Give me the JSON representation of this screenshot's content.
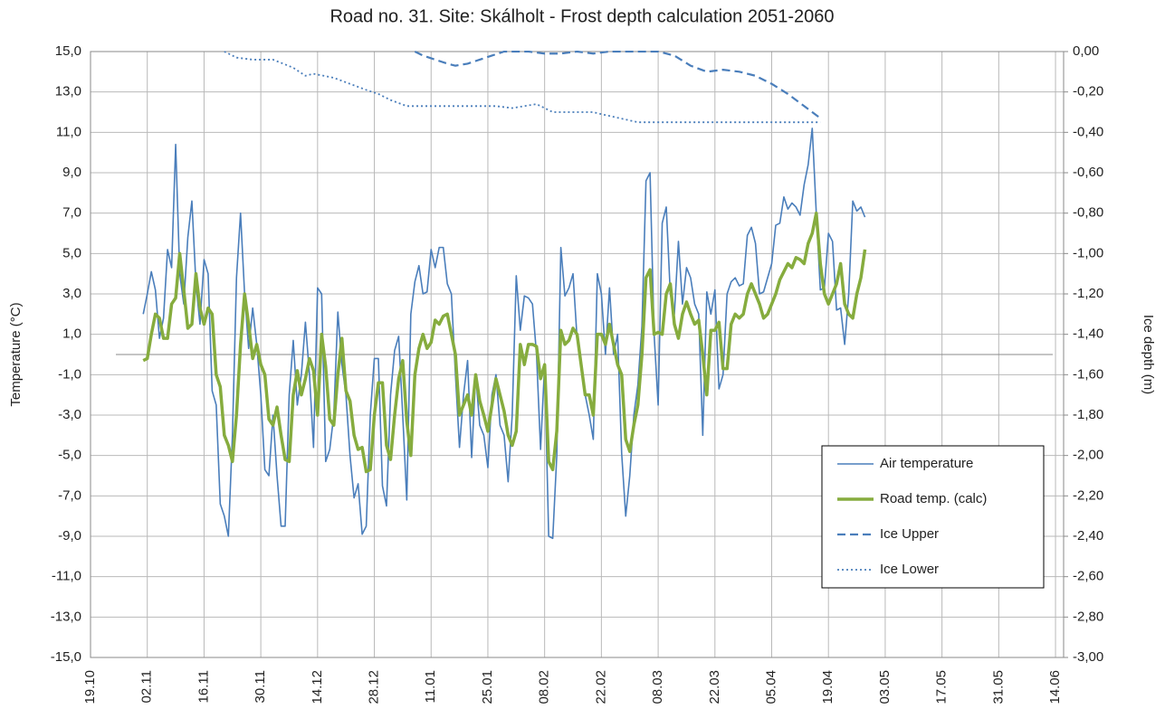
{
  "chart_data": {
    "type": "line",
    "title": "Road no. 31. Site: Skálholt - Frost depth calculation 2051-2060",
    "y_label": "Temperature (°C)",
    "y2_label": "Ice depth (m)",
    "grid": true,
    "legend": "lower right",
    "xlim": [
      0,
      240
    ],
    "xticks": [
      {
        "value": 0,
        "label": "19.10"
      },
      {
        "value": 14,
        "label": "02.11"
      },
      {
        "value": 28,
        "label": "16.11"
      },
      {
        "value": 42,
        "label": "30.11"
      },
      {
        "value": 56,
        "label": "14.12"
      },
      {
        "value": 70,
        "label": "28.12"
      },
      {
        "value": 84,
        "label": "11.01"
      },
      {
        "value": 98,
        "label": "25.01"
      },
      {
        "value": 112,
        "label": "08.02"
      },
      {
        "value": 126,
        "label": "22.02"
      },
      {
        "value": 140,
        "label": "08.03"
      },
      {
        "value": 154,
        "label": "22.03"
      },
      {
        "value": 168,
        "label": "05.04"
      },
      {
        "value": 182,
        "label": "19.04"
      },
      {
        "value": 196,
        "label": "03.05"
      },
      {
        "value": 210,
        "label": "17.05"
      },
      {
        "value": 224,
        "label": "31.05"
      },
      {
        "value": 238,
        "label": "14.06"
      }
    ],
    "ylim": [
      -15,
      15
    ],
    "yticks": [
      {
        "value": 15,
        "label": "15,0"
      },
      {
        "value": 13,
        "label": "13,0"
      },
      {
        "value": 11,
        "label": "11,0"
      },
      {
        "value": 9,
        "label": "9,0"
      },
      {
        "value": 7,
        "label": "7,0"
      },
      {
        "value": 5,
        "label": "5,0"
      },
      {
        "value": 3,
        "label": "3,0"
      },
      {
        "value": 1,
        "label": "1,0"
      },
      {
        "value": -1,
        "label": "-1,0"
      },
      {
        "value": -3,
        "label": "-3,0"
      },
      {
        "value": -5,
        "label": "-5,0"
      },
      {
        "value": -7,
        "label": "-7,0"
      },
      {
        "value": -9,
        "label": "-9,0"
      },
      {
        "value": -11,
        "label": "-11,0"
      },
      {
        "value": -13,
        "label": "-13,0"
      },
      {
        "value": -15,
        "label": "-15,0"
      }
    ],
    "y2lim": [
      -3,
      0
    ],
    "y2ticks": [
      {
        "value": 0,
        "label": "0,00"
      },
      {
        "value": -0.2,
        "label": "-0,20"
      },
      {
        "value": -0.4,
        "label": "-0,40"
      },
      {
        "value": -0.6,
        "label": "-0,60"
      },
      {
        "value": -0.8,
        "label": "-0,80"
      },
      {
        "value": -1,
        "label": "-1,00"
      },
      {
        "value": -1.2,
        "label": "-1,20"
      },
      {
        "value": -1.4,
        "label": "-1,40"
      },
      {
        "value": -1.6,
        "label": "-1,60"
      },
      {
        "value": -1.8,
        "label": "-1,80"
      },
      {
        "value": -2,
        "label": "-2,00"
      },
      {
        "value": -2.2,
        "label": "-2,20"
      },
      {
        "value": -2.4,
        "label": "-2,40"
      },
      {
        "value": -2.6,
        "label": "-2,60"
      },
      {
        "value": -2.8,
        "label": "-2,80"
      },
      {
        "value": -3,
        "label": "-3,00"
      }
    ],
    "x": [
      13,
      14,
      15,
      16,
      17,
      18,
      19,
      20,
      21,
      22,
      23,
      24,
      25,
      26,
      27,
      28,
      29,
      30,
      31,
      32,
      33,
      34,
      35,
      36,
      37,
      38,
      39,
      40,
      41,
      42,
      43,
      44,
      45,
      46,
      47,
      48,
      49,
      50,
      51,
      52,
      53,
      54,
      55,
      56,
      57,
      58,
      59,
      60,
      61,
      62,
      63,
      64,
      65,
      66,
      67,
      68,
      69,
      70,
      71,
      72,
      73,
      74,
      75,
      76,
      77,
      78,
      79,
      80,
      81,
      82,
      83,
      84,
      85,
      86,
      87,
      88,
      89,
      90,
      91,
      92,
      93,
      94,
      95,
      96,
      97,
      98,
      99,
      100,
      101,
      102,
      103,
      104,
      105,
      106,
      107,
      108,
      109,
      110,
      111,
      112,
      113,
      114,
      115,
      116,
      117,
      118,
      119,
      120,
      121,
      122,
      123,
      124,
      125,
      126,
      127,
      128,
      129,
      130,
      131,
      132,
      133,
      134,
      135,
      136,
      137,
      138,
      139,
      140,
      141,
      142,
      143,
      144,
      145,
      146,
      147,
      148,
      149,
      150,
      151,
      152,
      153,
      154,
      155,
      156,
      157,
      158,
      159,
      160,
      161,
      162,
      163,
      164,
      165,
      166,
      167,
      168,
      169,
      170,
      171,
      172,
      173,
      174,
      175,
      176,
      177,
      178,
      179,
      180,
      181,
      182,
      183,
      184,
      185,
      186,
      187,
      188,
      189,
      190,
      191
    ],
    "series": [
      {
        "name": "Air temperature",
        "color": "#4a7ebb",
        "style": "solid",
        "width": 1.6,
        "values": [
          2.0,
          3.0,
          4.1,
          3.2,
          0.8,
          1.8,
          5.2,
          4.3,
          10.4,
          4.0,
          2.5,
          5.8,
          7.6,
          3.5,
          1.5,
          4.7,
          4.0,
          -1.8,
          -2.5,
          -7.4,
          -8.0,
          -9.0,
          -4.0,
          3.8,
          7.0,
          3.0,
          0.3,
          2.3,
          0.5,
          -2.0,
          -5.7,
          -6.0,
          -3.0,
          -6.0,
          -8.5,
          -8.5,
          -2.0,
          0.7,
          -2.5,
          -1.0,
          1.6,
          -1.0,
          -4.6,
          3.3,
          3.0,
          -5.3,
          -4.7,
          -3.0,
          2.1,
          -0.5,
          -2.0,
          -5.0,
          -7.1,
          -6.4,
          -8.9,
          -8.5,
          -3.0,
          -0.2,
          -0.2,
          -6.5,
          -7.5,
          -2.0,
          0.2,
          0.9,
          -3.0,
          -7.2,
          2.0,
          3.6,
          4.4,
          3.0,
          3.1,
          5.2,
          4.3,
          5.3,
          5.3,
          3.5,
          3.0,
          -1.0,
          -4.6,
          -2.0,
          -0.3,
          -5.1,
          -1.0,
          -3.5,
          -4.0,
          -5.6,
          -2.0,
          -1.0,
          -3.5,
          -4.0,
          -6.3,
          -3.0,
          3.9,
          1.2,
          2.9,
          2.8,
          2.5,
          0.0,
          -4.7,
          -0.5,
          -9.0,
          -9.1,
          -5.0,
          5.3,
          2.9,
          3.3,
          4.0,
          0.8,
          -0.5,
          -2.0,
          -3.0,
          -4.2,
          4.0,
          3.0,
          0.0,
          3.3,
          0.0,
          1.0,
          -4.9,
          -8.0,
          -6.0,
          -3.0,
          -1.5,
          1.4,
          8.6,
          9.0,
          1.0,
          -2.5,
          6.5,
          7.3,
          3.0,
          2.0,
          5.6,
          2.5,
          4.3,
          3.8,
          2.5,
          2.0,
          -4.0,
          3.1,
          2.0,
          3.2,
          -1.7,
          -1.0,
          3.0,
          3.6,
          3.8,
          3.4,
          3.5,
          5.9,
          6.3,
          5.5,
          3.0,
          3.1,
          3.8,
          4.5,
          6.4,
          6.5,
          7.8,
          7.2,
          7.5,
          7.3,
          6.9,
          8.4,
          9.4,
          11.2,
          7.0,
          3.2,
          3.3,
          6.0,
          5.6,
          2.2,
          2.3,
          0.5,
          3.0,
          7.6,
          7.1,
          7.3,
          6.8
        ]
      },
      {
        "name": "Road temp. (calc)",
        "color": "#86ac3e",
        "style": "solid",
        "width": 3.5,
        "values": [
          -0.3,
          -0.2,
          1.0,
          2.0,
          1.8,
          0.8,
          0.8,
          2.5,
          2.8,
          5.0,
          3.2,
          1.3,
          1.5,
          4.0,
          2.3,
          1.5,
          2.3,
          2.0,
          -1.0,
          -1.6,
          -4.0,
          -4.5,
          -5.3,
          -3.0,
          0.5,
          3.0,
          1.5,
          -0.2,
          0.5,
          -0.5,
          -1.0,
          -3.2,
          -3.5,
          -2.6,
          -4.0,
          -5.2,
          -5.3,
          -2.0,
          -0.8,
          -2.0,
          -1.2,
          -0.2,
          -0.8,
          -3.0,
          1.0,
          -0.6,
          -3.2,
          -3.5,
          -1.0,
          0.8,
          -1.8,
          -2.3,
          -4.0,
          -4.7,
          -4.6,
          -5.8,
          -5.7,
          -3.0,
          -1.4,
          -1.4,
          -4.5,
          -5.2,
          -3.0,
          -1.2,
          -0.3,
          -3.3,
          -5.0,
          -1.0,
          0.3,
          1.0,
          0.3,
          0.6,
          1.7,
          1.5,
          1.9,
          2.0,
          1.0,
          0.0,
          -3.0,
          -2.5,
          -2.0,
          -3.0,
          -1.0,
          -2.3,
          -3.0,
          -3.8,
          -2.5,
          -1.2,
          -2.0,
          -2.8,
          -4.0,
          -4.5,
          -3.8,
          0.5,
          -0.5,
          0.5,
          0.5,
          0.4,
          -1.2,
          -0.5,
          -5.3,
          -5.7,
          -3.8,
          1.2,
          0.5,
          0.7,
          1.3,
          1.0,
          -0.5,
          -2.0,
          -2.0,
          -3.0,
          1.0,
          1.0,
          0.5,
          1.5,
          0.5,
          -0.5,
          -1.0,
          -4.2,
          -4.8,
          -3.5,
          -2.5,
          0.0,
          3.8,
          4.2,
          1.0,
          1.1,
          1.0,
          3.0,
          3.5,
          1.5,
          0.8,
          2.0,
          2.6,
          2.0,
          1.5,
          1.7,
          0.0,
          -2.0,
          1.2,
          1.2,
          1.6,
          -0.7,
          -0.7,
          1.5,
          2.0,
          1.8,
          2.0,
          3.0,
          3.5,
          3.0,
          2.5,
          1.8,
          2.0,
          2.5,
          3.0,
          3.7,
          4.1,
          4.5,
          4.3,
          4.8,
          4.7,
          4.5,
          5.5,
          6.0,
          7.0,
          4.5,
          3.0,
          2.5,
          3.0,
          3.5,
          4.5,
          2.5,
          2.0,
          1.8,
          3.0,
          3.8,
          5.2
        ]
      },
      {
        "name": "Ice Upper",
        "color": "#4a7ebb",
        "style": "dashed",
        "width": 2.2,
        "axis": "y2",
        "x": [
          80,
          82,
          85,
          88,
          90,
          93,
          96,
          99,
          102,
          104,
          108,
          112,
          116,
          120,
          124,
          128,
          132,
          136,
          140,
          144,
          148,
          152,
          156,
          160,
          164,
          168,
          172,
          176,
          180
        ],
        "values": [
          0,
          -0.02,
          -0.04,
          -0.06,
          -0.07,
          -0.06,
          -0.04,
          -0.02,
          0,
          0,
          0,
          -0.01,
          -0.01,
          0,
          -0.01,
          0,
          0,
          0,
          0,
          -0.02,
          -0.07,
          -0.1,
          -0.09,
          -0.1,
          -0.12,
          -0.16,
          -0.21,
          -0.27,
          -0.33
        ]
      },
      {
        "name": "Ice Lower",
        "color": "#4a7ebb",
        "style": "dotted",
        "width": 1.8,
        "axis": "y2",
        "x": [
          33,
          36,
          40,
          45,
          50,
          53,
          55,
          60,
          64,
          68,
          71,
          74,
          78,
          80,
          90,
          100,
          104,
          107,
          110,
          114,
          120,
          124,
          126,
          135,
          140,
          180
        ],
        "values": [
          0,
          -0.03,
          -0.04,
          -0.04,
          -0.08,
          -0.12,
          -0.11,
          -0.13,
          -0.16,
          -0.19,
          -0.21,
          -0.24,
          -0.27,
          -0.27,
          -0.27,
          -0.27,
          -0.28,
          -0.27,
          -0.26,
          -0.3,
          -0.3,
          -0.3,
          -0.31,
          -0.35,
          -0.35,
          -0.35
        ]
      }
    ]
  }
}
